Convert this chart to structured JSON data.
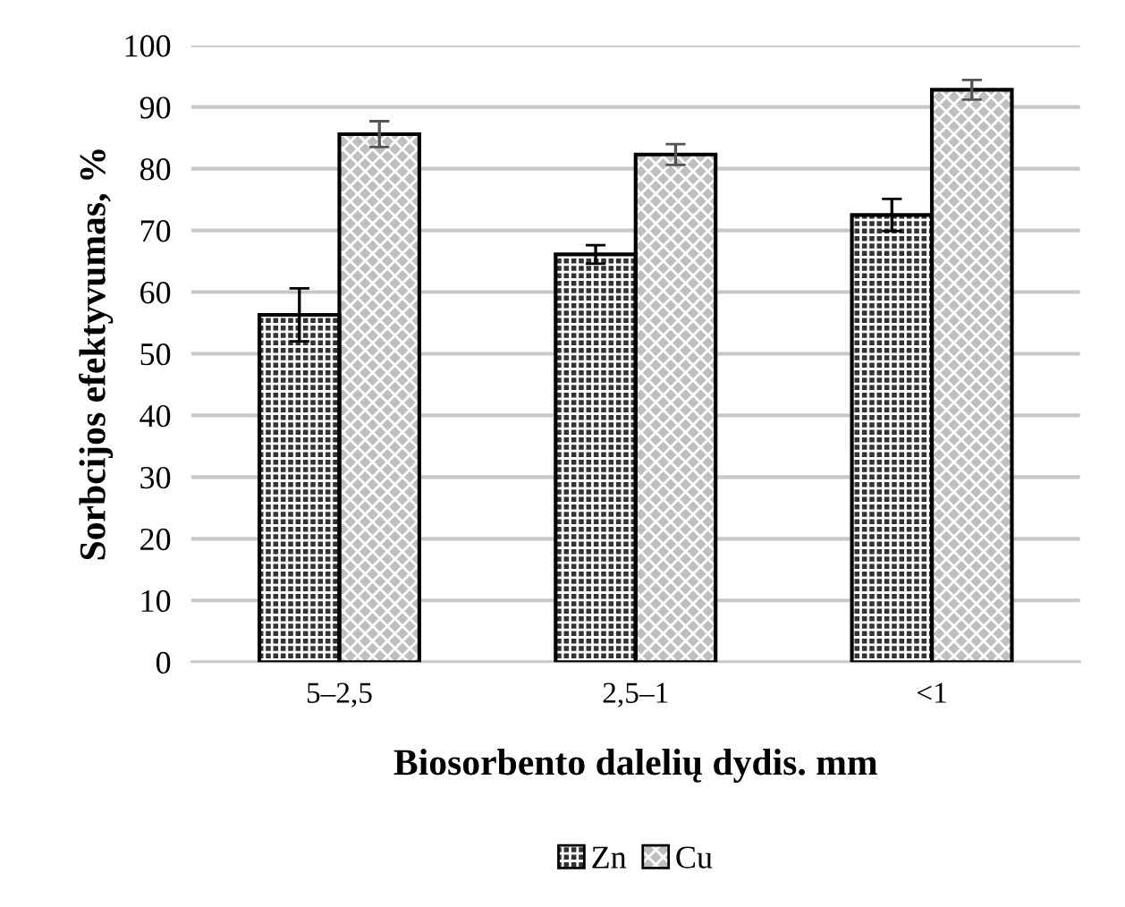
{
  "chart_data": {
    "type": "bar",
    "xlabel": "Biosorbento dalelių dydis. mm",
    "ylabel": "Sorbcijos efektyvumas, %",
    "categories": [
      "5–2,5",
      "2,5–1",
      "<1"
    ],
    "series": [
      {
        "name": "Zn",
        "color": "#333333",
        "values": [
          56.3,
          66.1,
          72.5
        ],
        "errors": [
          4.3,
          1.5,
          2.6
        ]
      },
      {
        "name": "Cu",
        "color": "#bfbfbf",
        "values": [
          85.6,
          82.3,
          92.8
        ],
        "errors": [
          2.1,
          1.7,
          1.6
        ]
      }
    ],
    "ylim": [
      0,
      100
    ],
    "yticks": [
      0,
      10,
      20,
      30,
      40,
      50,
      60,
      70,
      80,
      90,
      100
    ],
    "grid": "y",
    "legend": "bottom"
  }
}
